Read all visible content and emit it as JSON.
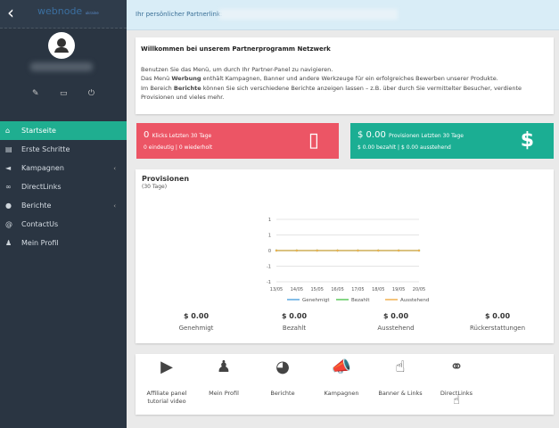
{
  "sidebar": {
    "logo": "webnode",
    "logo_sub": "ukraine",
    "back_icon": "chevron-left-icon",
    "actions": [
      "pencil-icon",
      "monitor-icon",
      "power-icon"
    ],
    "items": [
      {
        "label": "Startseite",
        "icon": "home-icon",
        "active": true
      },
      {
        "label": "Erste Schritte",
        "icon": "book-icon"
      },
      {
        "label": "Kampagnen",
        "icon": "megaphone-icon",
        "submenu": true
      },
      {
        "label": "DirectLinks",
        "icon": "link-icon"
      },
      {
        "label": "Berichte",
        "icon": "pie-chart-icon",
        "submenu": true
      },
      {
        "label": "ContactUs",
        "icon": "at-icon"
      },
      {
        "label": "Mein Profil",
        "icon": "user-icon"
      }
    ]
  },
  "topbar": {
    "partner_link_label": "Ihr persönlicher Partnerlink:"
  },
  "welcome": {
    "title": "Willkommen bei unserem Partnerprogramm Netzwerk",
    "line1": "Benutzen Sie das Menü, um durch Ihr Partner-Panel zu navigieren.",
    "line2_pre": "Das Menü ",
    "line2_bold": "Werbung",
    "line2_post": " enthält Kampagnen, Banner und andere Werkzeuge für ein erfolgreiches Bewerben unserer Produkte.",
    "line3_pre": "Im Bereich ",
    "line3_bold": "Berichte",
    "line3_post": " können Sie sich verschiedene Berichte anzeigen lassen – z.B. über durch Sie vermittelter Besucher, verdiente Provisionen und vieles mehr."
  },
  "stats": {
    "clicks": {
      "value": "0",
      "label": "Klicks Letzten 30 Tage",
      "sub": "0 eindeutig | 0 wiederholt",
      "color": "#ec5565"
    },
    "commissions": {
      "value": "$ 0.00",
      "label": "Provisionen Letzten 30 Tage",
      "sub": "$ 0.00 bezahlt | $ 0.00 ausstehend",
      "color": "#1bae93"
    }
  },
  "provisionen": {
    "title": "Provisionen",
    "period": "(30 Tage)",
    "totals": [
      {
        "value": "$ 0.00",
        "label": "Genehmigt"
      },
      {
        "value": "$ 0.00",
        "label": "Bezahlt"
      },
      {
        "value": "$ 0.00",
        "label": "Ausstehend"
      },
      {
        "value": "$ 0.00",
        "label": "Rückerstattungen"
      }
    ]
  },
  "chart_data": {
    "type": "line",
    "categories": [
      "13/05",
      "14/05",
      "15/05",
      "16/05",
      "17/05",
      "18/05",
      "19/05",
      "20/05"
    ],
    "y_tick_labels": [
      "1",
      "1",
      "0",
      "-1",
      "-1"
    ],
    "ylim": [
      -1,
      1
    ],
    "grid": true,
    "legend": "bottom",
    "series": [
      {
        "name": "Genehmigt",
        "color": "#5aa9e0",
        "values": [
          0,
          0,
          0,
          0,
          0,
          0,
          0,
          0
        ]
      },
      {
        "name": "Bezahlt",
        "color": "#5cc85c",
        "values": [
          0,
          0,
          0,
          0,
          0,
          0,
          0,
          0
        ]
      },
      {
        "name": "Ausstehend",
        "color": "#f0b050",
        "values": [
          0,
          0,
          0,
          0,
          0,
          0,
          0,
          0
        ]
      }
    ]
  },
  "quicklinks": [
    {
      "label": "Affiliate panel tutorial video",
      "icon": "video-icon"
    },
    {
      "label": "Mein Profil",
      "icon": "user-icon"
    },
    {
      "label": "Berichte",
      "icon": "pie-chart-icon"
    },
    {
      "label": "Kampagnen",
      "icon": "megaphone-icon"
    },
    {
      "label": "Banner & Links",
      "icon": "pointer-hand-icon"
    },
    {
      "label": "DirectLinks",
      "icon": "link-icon"
    }
  ]
}
